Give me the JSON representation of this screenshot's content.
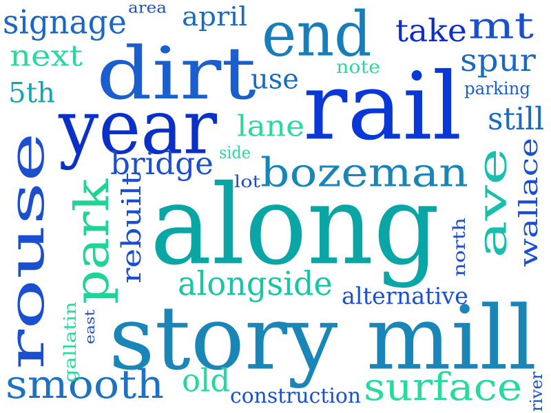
{
  "words": [
    {
      "text": "rail",
      "color": "#0a37d8"
    },
    {
      "text": "along",
      "color": "#0aa6a6"
    },
    {
      "text": "story mill",
      "color": "#1a86b8"
    },
    {
      "text": "dirt",
      "color": "#1a5fcf"
    },
    {
      "text": "year",
      "color": "#0b30c8"
    },
    {
      "text": "rouse",
      "color": "#1a4fd0"
    },
    {
      "text": "end",
      "color": "#177dbb"
    },
    {
      "text": "park",
      "color": "#1fd494"
    },
    {
      "text": "ave",
      "color": "#18bfae"
    },
    {
      "text": "bozeman",
      "color": "#1a86b8"
    },
    {
      "text": "smooth",
      "color": "#1f72c2"
    },
    {
      "text": "surface",
      "color": "#27dba0"
    },
    {
      "text": "alongside",
      "color": "#18c6a5"
    },
    {
      "text": "bridge",
      "color": "#1a4fd0"
    },
    {
      "text": "signage",
      "color": "#1a67c5"
    },
    {
      "text": "mt",
      "color": "#1a4fd0"
    },
    {
      "text": "take",
      "color": "#0c2fcc"
    },
    {
      "text": "spur",
      "color": "#1a67c5"
    },
    {
      "text": "still",
      "color": "#1a6bc3"
    },
    {
      "text": "next",
      "color": "#2bd9a0"
    },
    {
      "text": "april",
      "color": "#1a6bc3"
    },
    {
      "text": "lane",
      "color": "#2bd9a0"
    },
    {
      "text": "use",
      "color": "#1a6bc3"
    },
    {
      "text": "5th",
      "color": "#17a3b0"
    },
    {
      "text": "old",
      "color": "#26d89e"
    },
    {
      "text": "wallace",
      "color": "#1a4fd0"
    },
    {
      "text": "rebuilt",
      "color": "#1a4fd0"
    },
    {
      "text": "alternative",
      "color": "#1a4fd0"
    },
    {
      "text": "construction",
      "color": "#1a4fd0"
    },
    {
      "text": "parking",
      "color": "#1a5fcf"
    },
    {
      "text": "north",
      "color": "#1a4fd0"
    },
    {
      "text": "area",
      "color": "#1a4fd0"
    },
    {
      "text": "note",
      "color": "#2bd9a0"
    },
    {
      "text": "side",
      "color": "#27dba0"
    },
    {
      "text": "lot",
      "color": "#1a4fd0"
    },
    {
      "text": "gallatin",
      "color": "#2bd9a0"
    },
    {
      "text": "east",
      "color": "#1a4fd0"
    },
    {
      "text": "river",
      "color": "#1a4fd0"
    }
  ]
}
